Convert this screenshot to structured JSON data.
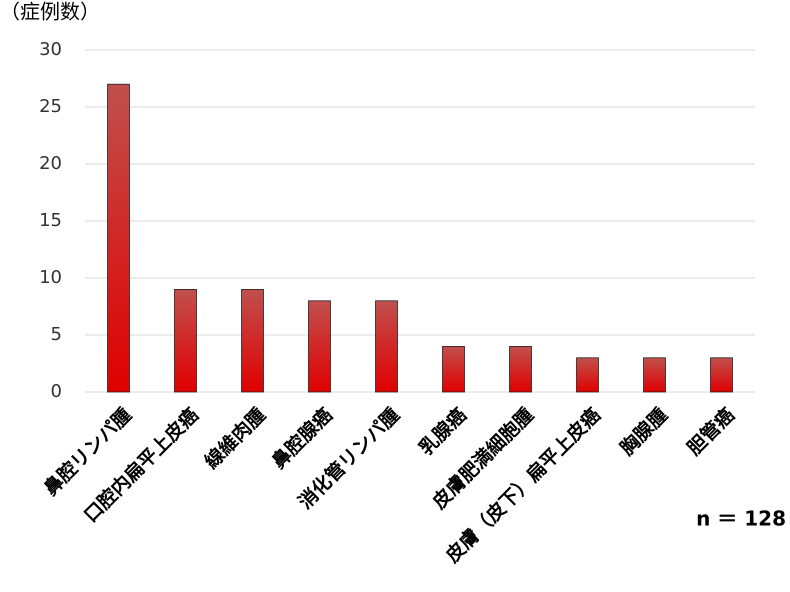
{
  "chart_data": {
    "type": "bar",
    "ylabel": "（症例数）",
    "categories": [
      "鼻腔リンパ腫",
      "口腔内扁平上皮癌",
      "線維肉腫",
      "鼻腔腺癌",
      "消化管リンパ腫",
      "乳腺癌",
      "皮膚肥満細胞腫",
      "皮膚（皮下）扁平上皮癌",
      "胸腺腫",
      "胆管癌"
    ],
    "values": [
      27,
      9,
      9,
      8,
      8,
      4,
      4,
      3,
      3,
      3
    ],
    "gradient": [
      "#c0504d",
      "#e00000"
    ],
    "ylim": [
      0,
      30
    ],
    "yticks": [
      0,
      5,
      10,
      15,
      20,
      25,
      30
    ],
    "grid": true,
    "annotation": "n ＝ 128"
  }
}
